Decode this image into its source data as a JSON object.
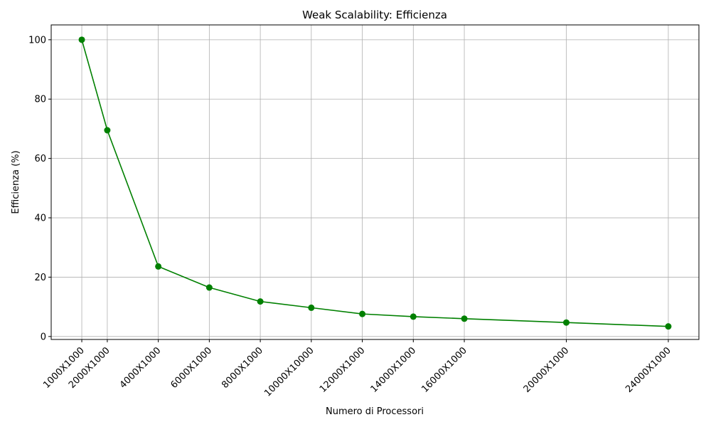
{
  "chart_data": {
    "type": "line",
    "title": "Weak Scalability: Efficienza",
    "xlabel": "Numero di Processori",
    "ylabel": "Efficienza (%)",
    "x": [
      1000,
      2000,
      4000,
      6000,
      8000,
      10000,
      12000,
      14000,
      16000,
      20000,
      24000
    ],
    "x_tick_labels": [
      "1000X1000",
      "2000X1000",
      "4000X1000",
      "6000X1000",
      "8000X1000",
      "10000X10000",
      "12000X1000",
      "14000X1000",
      "16000X1000",
      "20000X1000",
      "24000X1000"
    ],
    "y_ticks": [
      0,
      20,
      40,
      60,
      80,
      100
    ],
    "ylim": [
      -1,
      105
    ],
    "xlim": [
      -200,
      25200
    ],
    "grid": true,
    "series": [
      {
        "values": [
          100,
          69.5,
          23.6,
          16.5,
          11.8,
          9.7,
          7.6,
          6.7,
          6.0,
          4.7,
          3.4
        ],
        "color": "#008000",
        "marker": "circle"
      }
    ]
  }
}
